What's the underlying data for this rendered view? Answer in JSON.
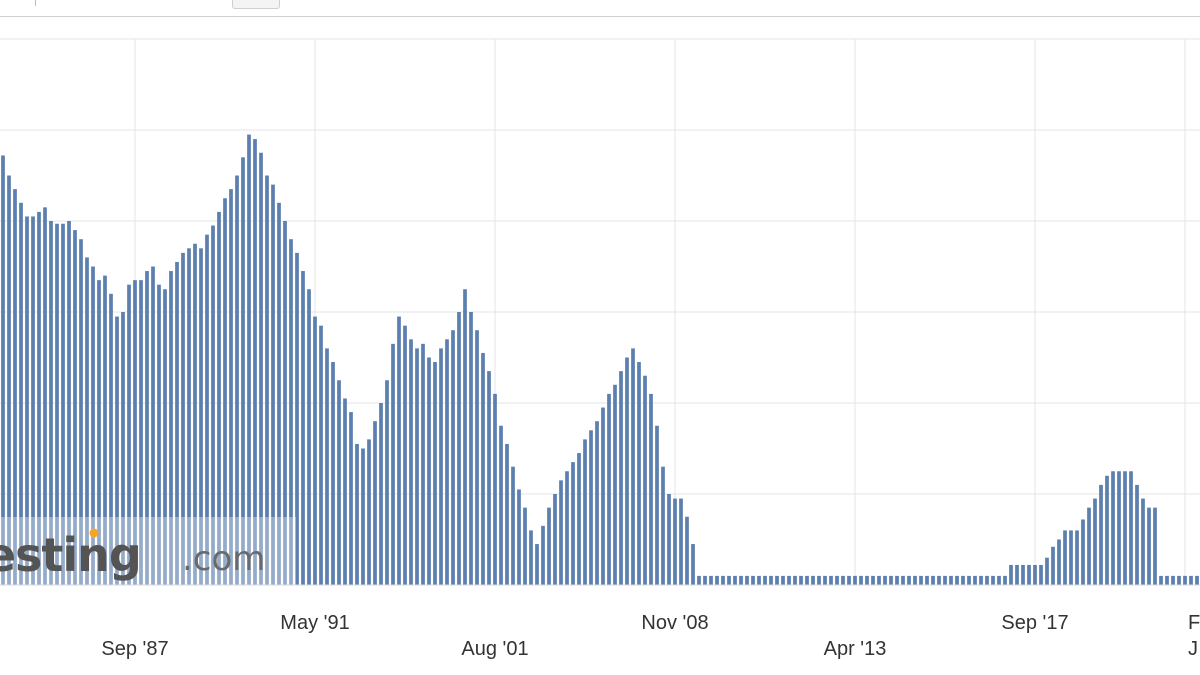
{
  "toolbar": {
    "button_label": ""
  },
  "watermark": {
    "text": "Investing",
    "suffix": ".com",
    "dot_color": "#f5a623"
  },
  "chart_data": {
    "type": "bar",
    "bar_color": "#5b7fae",
    "grid": true,
    "grid_color": "#e4e4e4",
    "title": "",
    "xlabel": "",
    "ylabel": "",
    "ylim": [
      0,
      6
    ],
    "x_tick_labels": [
      {
        "label": "Sep '87",
        "row": 2,
        "index": 22
      },
      {
        "label": "May '91",
        "row": 1,
        "index": 52
      },
      {
        "label": "Aug '01",
        "row": 2,
        "index": 82
      },
      {
        "label": "Nov '08",
        "row": 1,
        "index": 112
      },
      {
        "label": "Apr '13",
        "row": 2,
        "index": 142
      },
      {
        "label": "Sep '17",
        "row": 1,
        "index": 172
      },
      {
        "label": "F",
        "row": 1,
        "index": 197
      },
      {
        "label": "J",
        "row": 2,
        "index": 197
      }
    ],
    "values": [
      4.72,
      4.5,
      4.35,
      4.2,
      4.05,
      4.05,
      4.1,
      4.15,
      4.0,
      3.97,
      3.97,
      4.0,
      3.9,
      3.8,
      3.6,
      3.5,
      3.35,
      3.4,
      3.2,
      2.95,
      3.0,
      3.3,
      3.35,
      3.35,
      3.45,
      3.5,
      3.3,
      3.25,
      3.45,
      3.55,
      3.65,
      3.7,
      3.75,
      3.7,
      3.85,
      3.95,
      4.1,
      4.25,
      4.35,
      4.5,
      4.7,
      4.95,
      4.9,
      4.75,
      4.5,
      4.4,
      4.2,
      4.0,
      3.8,
      3.65,
      3.45,
      3.25,
      2.95,
      2.85,
      2.6,
      2.45,
      2.25,
      2.05,
      1.9,
      1.55,
      1.5,
      1.6,
      1.8,
      2.0,
      2.25,
      2.65,
      2.95,
      2.85,
      2.7,
      2.6,
      2.65,
      2.5,
      2.45,
      2.6,
      2.7,
      2.8,
      3.0,
      3.25,
      3.0,
      2.8,
      2.55,
      2.35,
      2.1,
      1.75,
      1.55,
      1.3,
      1.05,
      0.85,
      0.6,
      0.45,
      0.65,
      0.85,
      1.0,
      1.15,
      1.25,
      1.35,
      1.45,
      1.6,
      1.7,
      1.8,
      1.95,
      2.1,
      2.2,
      2.35,
      2.5,
      2.6,
      2.45,
      2.3,
      2.1,
      1.75,
      1.3,
      1.0,
      0.95,
      0.95,
      0.75,
      0.45,
      0.1,
      0.1,
      0.1,
      0.1,
      0.1,
      0.1,
      0.1,
      0.1,
      0.1,
      0.1,
      0.1,
      0.1,
      0.1,
      0.1,
      0.1,
      0.1,
      0.1,
      0.1,
      0.1,
      0.1,
      0.1,
      0.1,
      0.1,
      0.1,
      0.1,
      0.1,
      0.1,
      0.1,
      0.1,
      0.1,
      0.1,
      0.1,
      0.1,
      0.1,
      0.1,
      0.1,
      0.1,
      0.1,
      0.1,
      0.1,
      0.1,
      0.1,
      0.1,
      0.1,
      0.1,
      0.1,
      0.1,
      0.1,
      0.1,
      0.1,
      0.1,
      0.1,
      0.22,
      0.22,
      0.22,
      0.22,
      0.22,
      0.22,
      0.3,
      0.42,
      0.5,
      0.6,
      0.6,
      0.6,
      0.72,
      0.85,
      0.95,
      1.1,
      1.2,
      1.25,
      1.25,
      1.25,
      1.25,
      1.1,
      0.95,
      0.85,
      0.85,
      0.1,
      0.1,
      0.1,
      0.1,
      0.1,
      0.1,
      0.1
    ]
  }
}
